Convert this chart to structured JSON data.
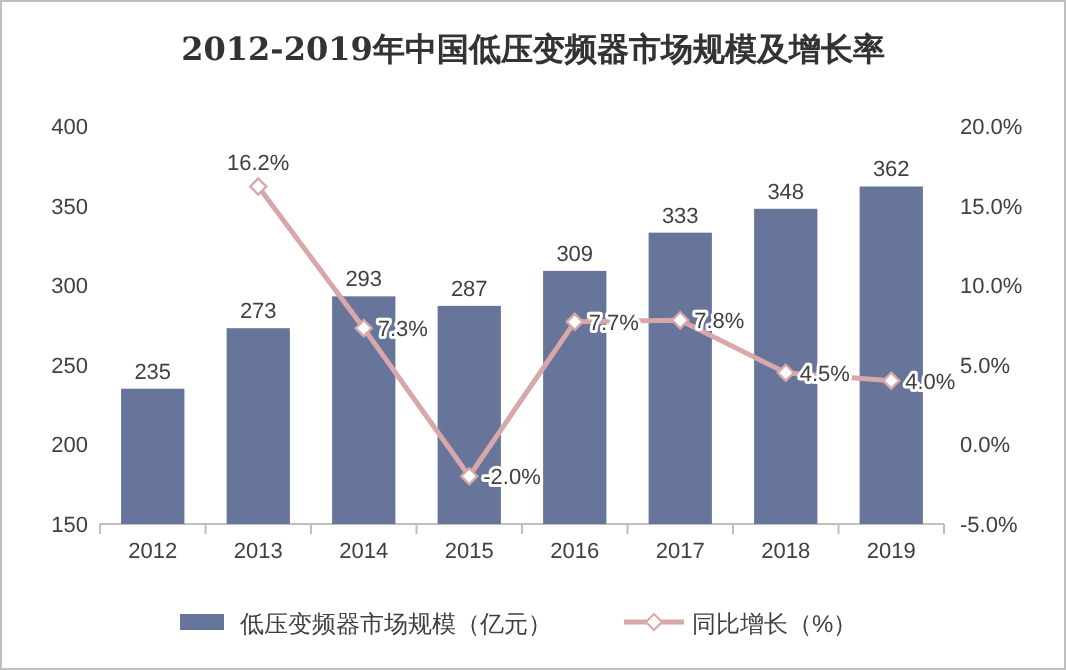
{
  "chart_data": {
    "type": "bar",
    "title": "2012-2019年中国低压变频器市场规模及增长率",
    "categories": [
      "2012",
      "2013",
      "2014",
      "2015",
      "2016",
      "2017",
      "2018",
      "2019"
    ],
    "series": [
      {
        "name": "低压变频器市场规模（亿元）",
        "color": "#68759b",
        "values": [
          235,
          273,
          293,
          287,
          309,
          333,
          348,
          362
        ],
        "value_labels": [
          "235",
          "273",
          "293",
          "287",
          "309",
          "333",
          "348",
          "362"
        ]
      },
      {
        "name": "同比增长（%）",
        "type": "line",
        "axis": "y2",
        "color": "#d8a7a9",
        "marker": "diamond",
        "values": [
          null,
          16.2,
          7.3,
          -2.0,
          7.7,
          7.8,
          4.5,
          4.0
        ],
        "value_labels": [
          null,
          "16.2%",
          "7.3%",
          "-2.0%",
          "7.7%",
          "7.8%",
          "4.5%",
          "4.0%"
        ]
      }
    ],
    "ylim": [
      150,
      400
    ],
    "yticks": [
      150,
      200,
      250,
      300,
      350,
      400
    ],
    "y2lim": [
      -5,
      20
    ],
    "y2ticks": [
      {
        "value": -5,
        "label": "-5.0%"
      },
      {
        "value": 0,
        "label": "0.0%"
      },
      {
        "value": 5,
        "label": "5.0%"
      },
      {
        "value": 10,
        "label": "10.0%"
      },
      {
        "value": 15,
        "label": "15.0%"
      },
      {
        "value": 20,
        "label": "20.0%"
      }
    ],
    "legend": "bottom"
  }
}
